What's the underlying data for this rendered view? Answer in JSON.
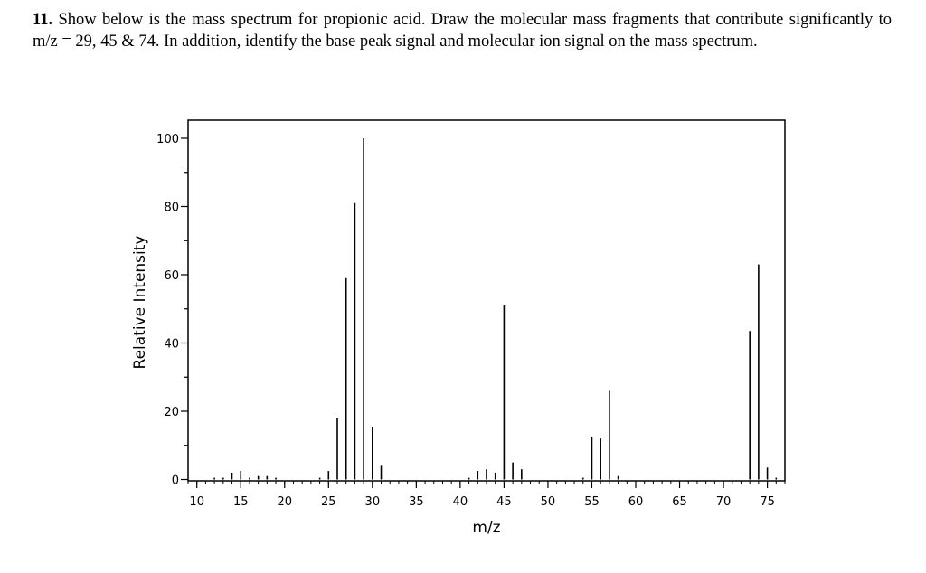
{
  "question": {
    "number": "11.",
    "text": "Show below is the mass spectrum for propionic acid. Draw the molecular mass fragments that contribute significantly to m/z = 29, 45 & 74. In addition, identify the base peak signal and molecular ion signal on the mass spectrum."
  },
  "chart_data": {
    "type": "bar",
    "xlabel": "m/z",
    "ylabel": "Relative Intensity",
    "xlim": [
      9,
      77
    ],
    "ylim": [
      0,
      100
    ],
    "x_ticks": [
      10,
      15,
      20,
      25,
      30,
      35,
      40,
      45,
      50,
      55,
      60,
      65,
      70,
      75
    ],
    "y_ticks": [
      0,
      20,
      40,
      60,
      80,
      100
    ],
    "grid": false,
    "peaks": [
      {
        "mz": 12,
        "intensity": 0.5
      },
      {
        "mz": 13,
        "intensity": 0.5
      },
      {
        "mz": 14,
        "intensity": 2
      },
      {
        "mz": 15,
        "intensity": 2.5
      },
      {
        "mz": 16,
        "intensity": 0.5
      },
      {
        "mz": 17,
        "intensity": 1
      },
      {
        "mz": 18,
        "intensity": 1
      },
      {
        "mz": 19,
        "intensity": 0.5
      },
      {
        "mz": 24,
        "intensity": 0.5
      },
      {
        "mz": 25,
        "intensity": 2.5
      },
      {
        "mz": 26,
        "intensity": 18
      },
      {
        "mz": 27,
        "intensity": 59
      },
      {
        "mz": 28,
        "intensity": 81
      },
      {
        "mz": 29,
        "intensity": 100
      },
      {
        "mz": 30,
        "intensity": 15.5
      },
      {
        "mz": 31,
        "intensity": 4
      },
      {
        "mz": 41,
        "intensity": 0.5
      },
      {
        "mz": 42,
        "intensity": 2.5
      },
      {
        "mz": 43,
        "intensity": 3
      },
      {
        "mz": 44,
        "intensity": 2
      },
      {
        "mz": 45,
        "intensity": 51
      },
      {
        "mz": 46,
        "intensity": 5
      },
      {
        "mz": 47,
        "intensity": 3
      },
      {
        "mz": 54,
        "intensity": 0.5
      },
      {
        "mz": 55,
        "intensity": 12.5
      },
      {
        "mz": 56,
        "intensity": 12
      },
      {
        "mz": 57,
        "intensity": 26
      },
      {
        "mz": 58,
        "intensity": 1
      },
      {
        "mz": 73,
        "intensity": 43.5
      },
      {
        "mz": 74,
        "intensity": 63
      },
      {
        "mz": 75,
        "intensity": 3.5
      },
      {
        "mz": 76,
        "intensity": 0.5
      }
    ]
  }
}
